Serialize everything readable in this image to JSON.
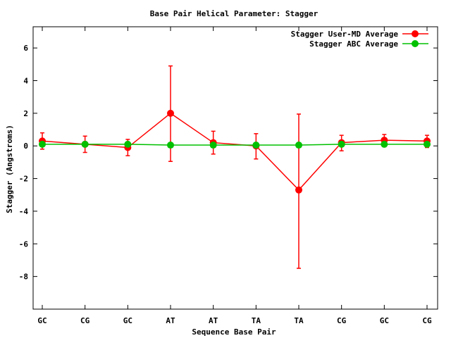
{
  "chart_data": {
    "type": "line",
    "title": "Base Pair Helical Parameter: Stagger",
    "xlabel": "Sequence Base Pair",
    "ylabel": "Stagger (Angstroms)",
    "categories": [
      "GC",
      "CG",
      "GC",
      "AT",
      "AT",
      "TA",
      "TA",
      "CG",
      "GC",
      "CG"
    ],
    "ylim": [
      -10,
      7.3
    ],
    "yticks": [
      -8,
      -6,
      -4,
      -2,
      0,
      2,
      4,
      6
    ],
    "ytick_labels": [
      "-8",
      "-6",
      "-4",
      "-2",
      "0",
      "2",
      "4",
      "6"
    ],
    "grid": false,
    "legend_position": "top-right",
    "series": [
      {
        "name": "Stagger User-MD Average",
        "color": "#ff0000",
        "values": [
          0.3,
          0.1,
          -0.1,
          2.0,
          0.2,
          0.0,
          -2.7,
          0.2,
          0.35,
          0.3
        ],
        "err_low": [
          -0.2,
          -0.4,
          -0.6,
          -0.95,
          -0.5,
          -0.8,
          -7.5,
          -0.3,
          -0.05,
          -0.1
        ],
        "err_high": [
          0.8,
          0.6,
          0.4,
          4.9,
          0.9,
          0.75,
          1.95,
          0.65,
          0.7,
          0.65
        ]
      },
      {
        "name": "Stagger ABC Average",
        "color": "#00c000",
        "values": [
          0.1,
          0.1,
          0.1,
          0.05,
          0.05,
          0.05,
          0.05,
          0.1,
          0.1,
          0.1
        ]
      }
    ]
  }
}
